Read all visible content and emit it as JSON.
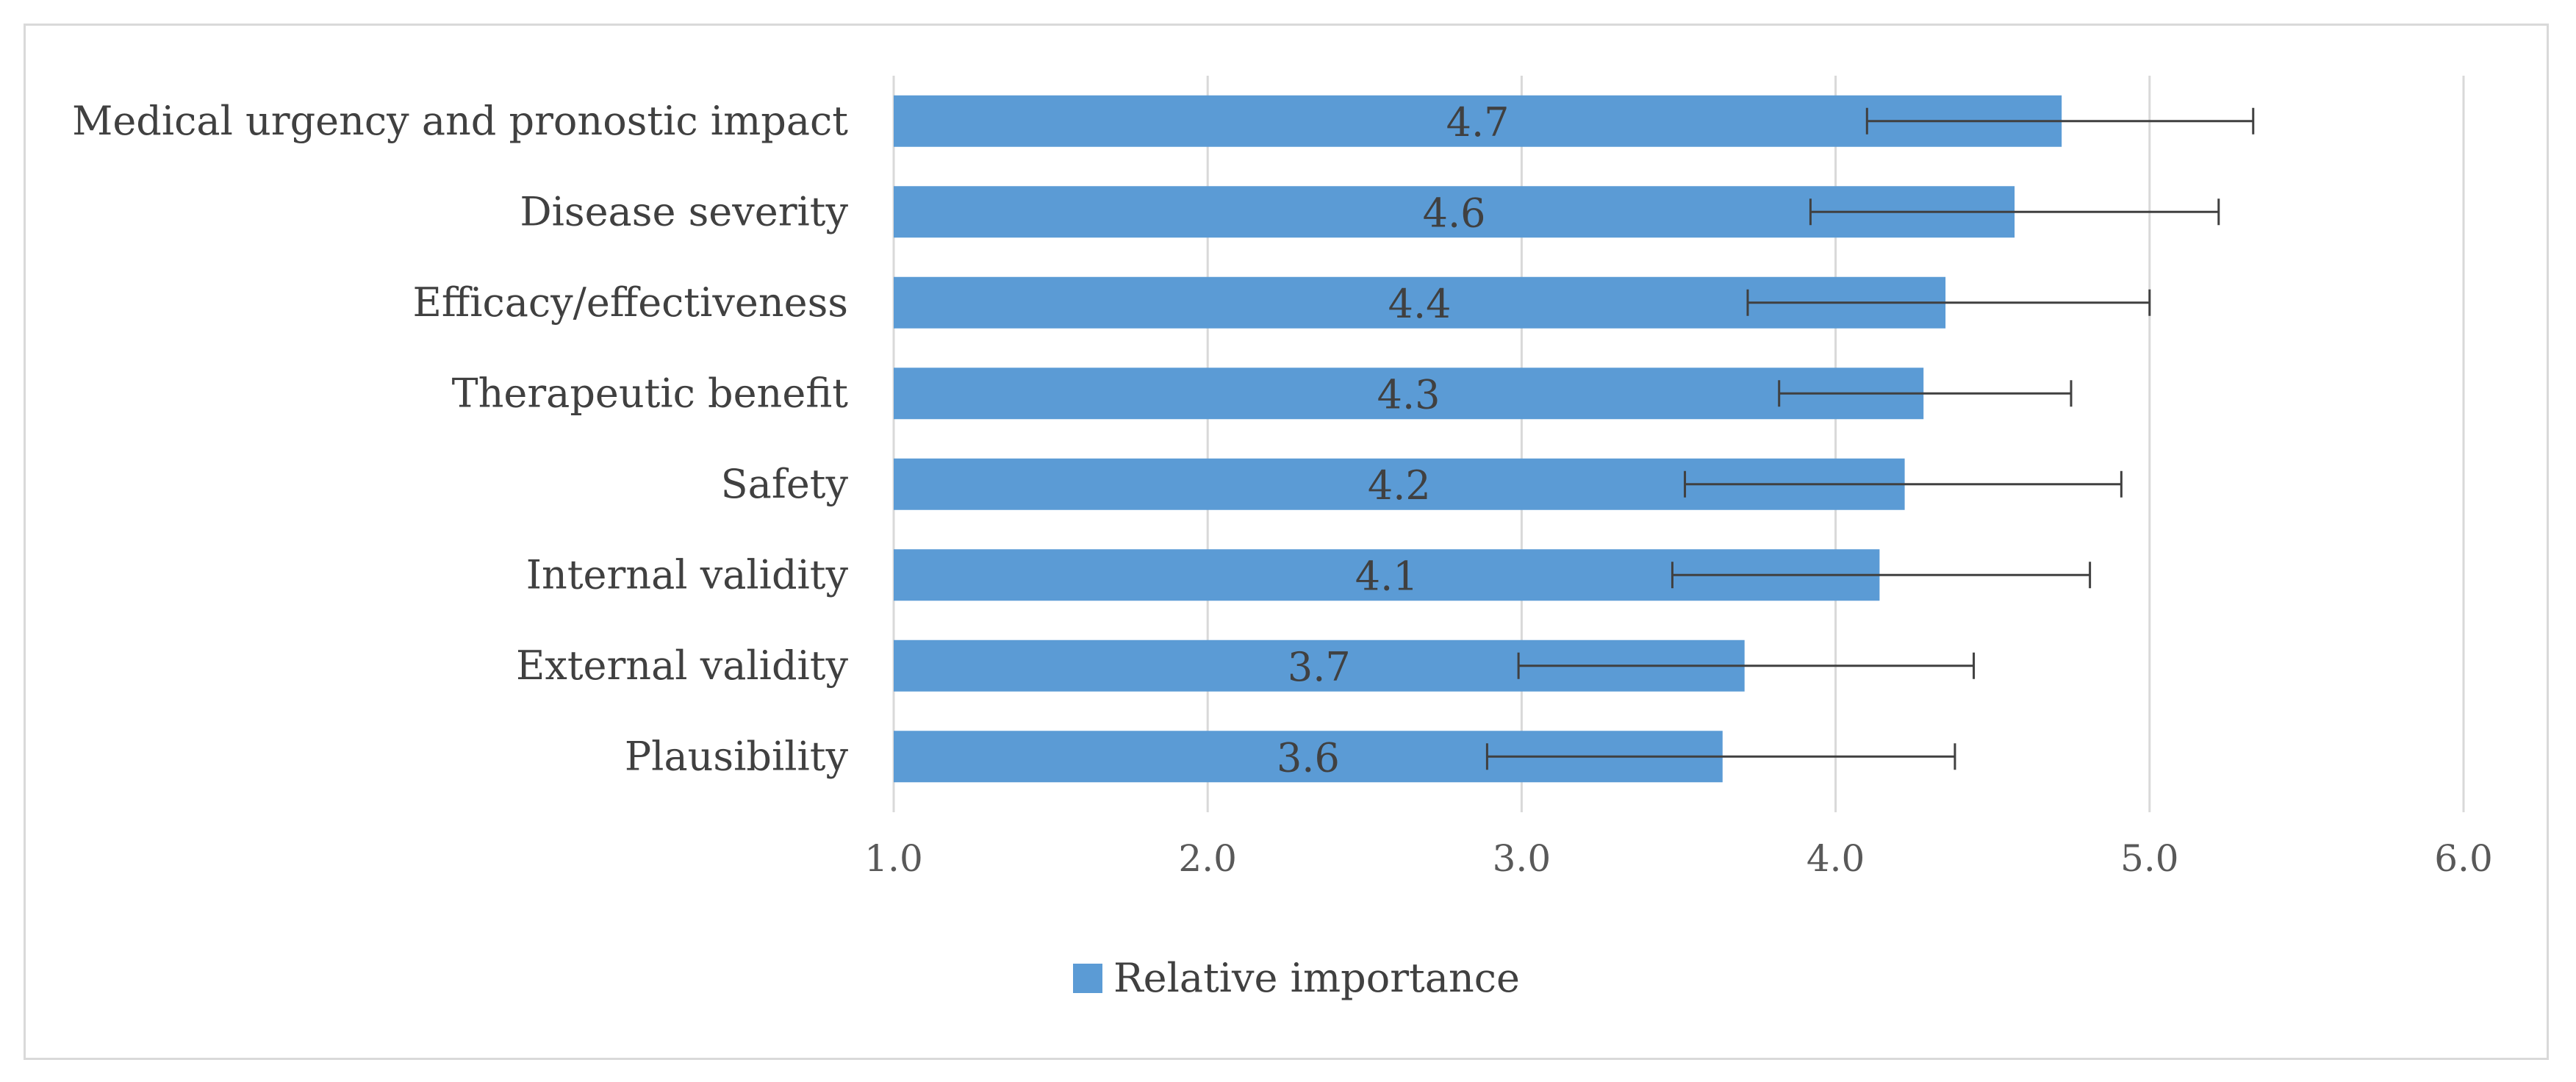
{
  "chart_data": {
    "type": "bar",
    "orientation": "horizontal",
    "title": "",
    "xlabel": "",
    "ylabel": "",
    "xlim": [
      1.0,
      6.0
    ],
    "x_ticks": [
      "1.0",
      "2.0",
      "3.0",
      "4.0",
      "5.0",
      "6.0"
    ],
    "grid": true,
    "legend_position": "bottom",
    "bar_color": "#5b9bd5",
    "errorbar_color": "#404040",
    "gridline_color": "#d9d9d9",
    "series": [
      {
        "name": "Relative importance",
        "categories": [
          "Medical urgency and pronostic impact",
          "Disease severity",
          "Efficacy/effectiveness",
          "Therapeutic benefit",
          "Safety",
          "Internal validity",
          "External validity",
          "Plausibility"
        ],
        "values": [
          4.72,
          4.57,
          4.35,
          4.28,
          4.22,
          4.14,
          3.71,
          3.64
        ],
        "labels": [
          "4.7",
          "4.6",
          "4.4",
          "4.3",
          "4.2",
          "4.1",
          "3.7",
          "3.6"
        ],
        "error_low": [
          4.1,
          3.92,
          3.72,
          3.82,
          3.52,
          3.48,
          2.99,
          2.89
        ],
        "error_high": [
          5.33,
          5.22,
          5.0,
          4.75,
          4.91,
          4.81,
          4.44,
          4.38
        ]
      }
    ]
  }
}
